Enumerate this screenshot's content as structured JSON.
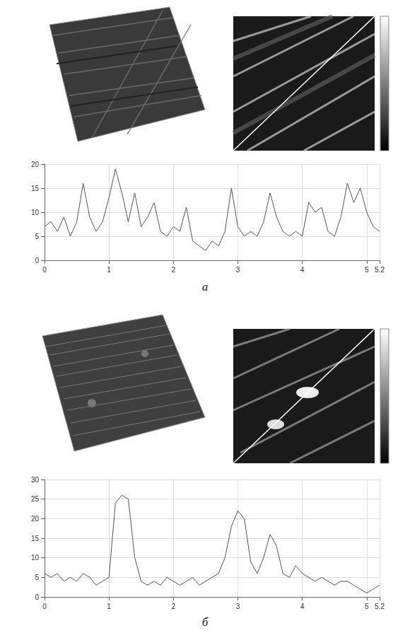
{
  "panel_labels": [
    "а",
    "б"
  ],
  "chart_data": [
    {
      "type": "line",
      "x": [
        0,
        0.1,
        0.2,
        0.3,
        0.4,
        0.5,
        0.6,
        0.7,
        0.8,
        0.9,
        1.0,
        1.1,
        1.2,
        1.3,
        1.4,
        1.5,
        1.6,
        1.7,
        1.8,
        1.9,
        2.0,
        2.1,
        2.2,
        2.3,
        2.4,
        2.5,
        2.6,
        2.7,
        2.8,
        2.9,
        3.0,
        3.1,
        3.2,
        3.3,
        3.4,
        3.5,
        3.6,
        3.7,
        3.8,
        3.9,
        4.0,
        4.1,
        4.2,
        4.3,
        4.4,
        4.5,
        4.6,
        4.7,
        4.8,
        4.9,
        5.0,
        5.1,
        5.2
      ],
      "values": [
        7,
        8,
        6,
        9,
        5,
        8,
        16,
        9,
        6,
        8,
        13,
        19,
        14,
        8,
        14,
        7,
        9,
        12,
        6,
        5,
        7,
        6,
        11,
        4,
        3,
        2,
        4,
        3,
        6,
        15,
        7,
        5,
        6,
        5,
        8,
        14,
        9,
        6,
        5,
        6,
        5,
        12,
        10,
        11,
        6,
        5,
        9,
        16,
        12,
        15,
        10,
        7,
        6
      ],
      "color": "#555555",
      "xlim": [
        0,
        5.2
      ],
      "xticks": [
        0,
        1,
        2,
        3,
        4,
        5
      ],
      "ylim": [
        0,
        20
      ],
      "yticks": [
        0,
        5,
        10,
        15,
        20
      ],
      "grid": true
    },
    {
      "type": "line",
      "x": [
        0,
        0.1,
        0.2,
        0.3,
        0.4,
        0.5,
        0.6,
        0.7,
        0.8,
        0.9,
        1.0,
        1.1,
        1.2,
        1.3,
        1.4,
        1.5,
        1.6,
        1.7,
        1.8,
        1.9,
        2.0,
        2.1,
        2.2,
        2.3,
        2.4,
        2.5,
        2.6,
        2.7,
        2.8,
        2.9,
        3.0,
        3.1,
        3.2,
        3.3,
        3.4,
        3.5,
        3.6,
        3.7,
        3.8,
        3.9,
        4.0,
        4.1,
        4.2,
        4.3,
        4.4,
        4.5,
        4.6,
        4.7,
        4.8,
        4.9,
        5.0,
        5.1,
        5.2
      ],
      "values": [
        6,
        5,
        6,
        4,
        5,
        4,
        6,
        5,
        3,
        4,
        5,
        24,
        26,
        25,
        10,
        4,
        3,
        4,
        3,
        5,
        4,
        3,
        4,
        5,
        3,
        4,
        5,
        6,
        10,
        18,
        22,
        20,
        9,
        6,
        10,
        16,
        13,
        6,
        5,
        8,
        6,
        5,
        4,
        5,
        4,
        3,
        4,
        4,
        3,
        2,
        1,
        2,
        3
      ],
      "color": "#555555",
      "xlim": [
        0,
        5.2
      ],
      "xticks": [
        0,
        1,
        2,
        3,
        4,
        5
      ],
      "ylim": [
        0,
        30
      ],
      "yticks": [
        0,
        5,
        10,
        15,
        20,
        25,
        30
      ],
      "grid": true
    }
  ]
}
